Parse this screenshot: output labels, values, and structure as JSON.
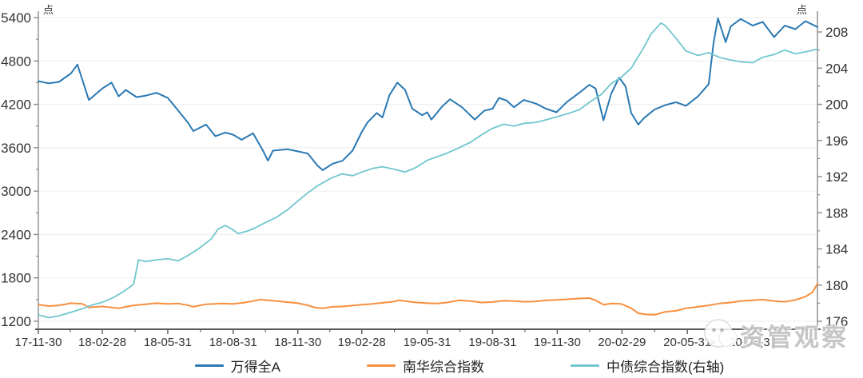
{
  "unit_left": "点",
  "unit_right": "点",
  "watermark": {
    "icon": "wechat-icon",
    "text": "资管观察"
  },
  "chart_data": {
    "type": "line",
    "title": "",
    "grid": "horizontal",
    "legend_position": "bottom",
    "x_tick_labels": [
      "17-11-30",
      "18-02-28",
      "18-05-31",
      "18-08-31",
      "18-11-30",
      "19-02-28",
      "19-05-31",
      "19-08-31",
      "19-11-30",
      "20-02-29",
      "20-05-31",
      "20-08-31"
    ],
    "x_range": [
      "17-11-30",
      "20-11-30"
    ],
    "left_axis": {
      "unit": "点",
      "min": 1200,
      "max": 5400,
      "ticks": [
        1200,
        1800,
        2400,
        3000,
        3600,
        4200,
        4800,
        5400
      ]
    },
    "right_axis": {
      "unit": "点",
      "min": 176,
      "max": 208,
      "ticks": [
        176,
        180,
        184,
        188,
        192,
        196,
        200,
        204,
        208
      ]
    },
    "colors": {
      "grid": "#ececec",
      "spine": "#8c8c8c",
      "bottom_spine": "#595959",
      "tick_text": "#333333"
    },
    "series": [
      {
        "name": "万得全A",
        "axis": "left",
        "color": "#2B79B3",
        "points": [
          [
            "17-11-30",
            4520
          ],
          [
            "17-12-15",
            4490
          ],
          [
            "17-12-29",
            4510
          ],
          [
            "18-01-15",
            4630
          ],
          [
            "18-01-24",
            4750
          ],
          [
            "18-02-09",
            4260
          ],
          [
            "18-02-28",
            4420
          ],
          [
            "18-03-13",
            4500
          ],
          [
            "18-03-23",
            4310
          ],
          [
            "18-04-02",
            4400
          ],
          [
            "18-04-17",
            4300
          ],
          [
            "18-04-30",
            4320
          ],
          [
            "18-05-15",
            4360
          ],
          [
            "18-05-31",
            4290
          ],
          [
            "18-06-15",
            4110
          ],
          [
            "18-06-29",
            3940
          ],
          [
            "18-07-06",
            3830
          ],
          [
            "18-07-24",
            3920
          ],
          [
            "18-08-06",
            3760
          ],
          [
            "18-08-20",
            3810
          ],
          [
            "18-08-31",
            3780
          ],
          [
            "18-09-12",
            3710
          ],
          [
            "18-09-28",
            3800
          ],
          [
            "18-10-12",
            3560
          ],
          [
            "18-10-19",
            3420
          ],
          [
            "18-10-26",
            3560
          ],
          [
            "18-11-15",
            3580
          ],
          [
            "18-11-30",
            3550
          ],
          [
            "18-12-14",
            3520
          ],
          [
            "18-12-28",
            3350
          ],
          [
            "19-01-04",
            3290
          ],
          [
            "19-01-18",
            3380
          ],
          [
            "19-02-01",
            3420
          ],
          [
            "19-02-15",
            3560
          ],
          [
            "19-02-28",
            3820
          ],
          [
            "19-03-08",
            3950
          ],
          [
            "19-03-21",
            4080
          ],
          [
            "19-03-29",
            4020
          ],
          [
            "19-04-08",
            4330
          ],
          [
            "19-04-19",
            4500
          ],
          [
            "19-04-30",
            4400
          ],
          [
            "19-05-10",
            4140
          ],
          [
            "19-05-24",
            4050
          ],
          [
            "19-05-31",
            4090
          ],
          [
            "19-06-06",
            3990
          ],
          [
            "19-06-21",
            4170
          ],
          [
            "19-07-02",
            4270
          ],
          [
            "19-07-19",
            4160
          ],
          [
            "19-08-06",
            3990
          ],
          [
            "19-08-19",
            4110
          ],
          [
            "19-08-31",
            4140
          ],
          [
            "19-09-09",
            4290
          ],
          [
            "19-09-20",
            4250
          ],
          [
            "19-09-30",
            4160
          ],
          [
            "19-10-14",
            4260
          ],
          [
            "19-10-31",
            4210
          ],
          [
            "19-11-14",
            4140
          ],
          [
            "19-11-29",
            4090
          ],
          [
            "19-12-13",
            4230
          ],
          [
            "19-12-31",
            4360
          ],
          [
            "20-01-14",
            4470
          ],
          [
            "20-01-23",
            4420
          ],
          [
            "20-02-03",
            3980
          ],
          [
            "20-02-14",
            4350
          ],
          [
            "20-02-25",
            4570
          ],
          [
            "20-03-05",
            4450
          ],
          [
            "20-03-13",
            4080
          ],
          [
            "20-03-23",
            3920
          ],
          [
            "20-03-31",
            4010
          ],
          [
            "20-04-15",
            4130
          ],
          [
            "20-04-30",
            4190
          ],
          [
            "20-05-15",
            4230
          ],
          [
            "20-05-29",
            4180
          ],
          [
            "20-06-15",
            4310
          ],
          [
            "20-06-30",
            4480
          ],
          [
            "20-07-07",
            5060
          ],
          [
            "20-07-13",
            5390
          ],
          [
            "20-07-24",
            5060
          ],
          [
            "20-07-31",
            5280
          ],
          [
            "20-08-14",
            5380
          ],
          [
            "20-08-31",
            5290
          ],
          [
            "20-09-14",
            5340
          ],
          [
            "20-09-30",
            5130
          ],
          [
            "20-10-15",
            5290
          ],
          [
            "20-10-30",
            5240
          ],
          [
            "20-11-13",
            5350
          ],
          [
            "20-11-30",
            5270
          ]
        ]
      },
      {
        "name": "南华综合指数",
        "axis": "left",
        "color": "#F78F3F",
        "points": [
          [
            "17-11-30",
            1430
          ],
          [
            "17-12-15",
            1410
          ],
          [
            "17-12-29",
            1420
          ],
          [
            "18-01-15",
            1450
          ],
          [
            "18-01-31",
            1440
          ],
          [
            "18-02-09",
            1390
          ],
          [
            "18-02-28",
            1405
          ],
          [
            "18-03-23",
            1380
          ],
          [
            "18-04-13",
            1420
          ],
          [
            "18-04-30",
            1435
          ],
          [
            "18-05-15",
            1450
          ],
          [
            "18-05-31",
            1440
          ],
          [
            "18-06-15",
            1445
          ],
          [
            "18-06-29",
            1420
          ],
          [
            "18-07-06",
            1400
          ],
          [
            "18-07-24",
            1435
          ],
          [
            "18-08-15",
            1445
          ],
          [
            "18-08-31",
            1440
          ],
          [
            "18-09-14",
            1455
          ],
          [
            "18-09-28",
            1480
          ],
          [
            "18-10-08",
            1500
          ],
          [
            "18-10-31",
            1480
          ],
          [
            "18-11-15",
            1465
          ],
          [
            "18-11-30",
            1450
          ],
          [
            "18-12-14",
            1420
          ],
          [
            "18-12-24",
            1390
          ],
          [
            "19-01-04",
            1380
          ],
          [
            "19-01-18",
            1400
          ],
          [
            "19-02-01",
            1405
          ],
          [
            "19-02-28",
            1430
          ],
          [
            "19-03-15",
            1440
          ],
          [
            "19-03-29",
            1455
          ],
          [
            "19-04-12",
            1470
          ],
          [
            "19-04-22",
            1490
          ],
          [
            "19-05-10",
            1465
          ],
          [
            "19-05-31",
            1450
          ],
          [
            "19-06-14",
            1445
          ],
          [
            "19-06-28",
            1460
          ],
          [
            "19-07-15",
            1490
          ],
          [
            "19-07-31",
            1480
          ],
          [
            "19-08-15",
            1460
          ],
          [
            "19-08-30",
            1465
          ],
          [
            "19-09-16",
            1485
          ],
          [
            "19-09-30",
            1480
          ],
          [
            "19-10-15",
            1470
          ],
          [
            "19-10-31",
            1475
          ],
          [
            "19-11-15",
            1490
          ],
          [
            "19-11-29",
            1495
          ],
          [
            "19-12-16",
            1505
          ],
          [
            "19-12-31",
            1515
          ],
          [
            "20-01-14",
            1520
          ],
          [
            "20-01-23",
            1490
          ],
          [
            "20-02-03",
            1430
          ],
          [
            "20-02-14",
            1445
          ],
          [
            "20-02-28",
            1440
          ],
          [
            "20-03-13",
            1380
          ],
          [
            "20-03-23",
            1310
          ],
          [
            "20-04-03",
            1295
          ],
          [
            "20-04-15",
            1290
          ],
          [
            "20-04-30",
            1330
          ],
          [
            "20-05-15",
            1345
          ],
          [
            "20-05-29",
            1380
          ],
          [
            "20-06-15",
            1400
          ],
          [
            "20-06-30",
            1420
          ],
          [
            "20-07-15",
            1445
          ],
          [
            "20-07-31",
            1460
          ],
          [
            "20-08-14",
            1480
          ],
          [
            "20-08-31",
            1490
          ],
          [
            "20-09-14",
            1500
          ],
          [
            "20-09-30",
            1480
          ],
          [
            "20-10-15",
            1470
          ],
          [
            "20-10-30",
            1495
          ],
          [
            "20-11-13",
            1540
          ],
          [
            "20-11-23",
            1600
          ],
          [
            "20-11-30",
            1720
          ]
        ]
      },
      {
        "name": "中债综合指数(右轴)",
        "axis": "right",
        "color": "#70C6CD",
        "points": [
          [
            "17-11-30",
            176.7
          ],
          [
            "17-12-15",
            176.4
          ],
          [
            "17-12-29",
            176.6
          ],
          [
            "18-01-15",
            177.0
          ],
          [
            "18-01-31",
            177.4
          ],
          [
            "18-02-14",
            177.8
          ],
          [
            "18-02-28",
            178.1
          ],
          [
            "18-03-15",
            178.6
          ],
          [
            "18-03-30",
            179.3
          ],
          [
            "18-04-13",
            180.1
          ],
          [
            "18-04-20",
            182.8
          ],
          [
            "18-04-30",
            182.6
          ],
          [
            "18-05-15",
            182.8
          ],
          [
            "18-05-31",
            182.9
          ],
          [
            "18-06-15",
            182.7
          ],
          [
            "18-06-29",
            183.3
          ],
          [
            "18-07-13",
            184.0
          ],
          [
            "18-07-31",
            185.1
          ],
          [
            "18-08-10",
            186.2
          ],
          [
            "18-08-20",
            186.6
          ],
          [
            "18-08-31",
            186.1
          ],
          [
            "18-09-07",
            185.7
          ],
          [
            "18-09-21",
            186.0
          ],
          [
            "18-09-30",
            186.3
          ],
          [
            "18-10-15",
            186.9
          ],
          [
            "18-10-31",
            187.5
          ],
          [
            "18-11-15",
            188.3
          ],
          [
            "18-11-30",
            189.3
          ],
          [
            "18-12-14",
            190.2
          ],
          [
            "18-12-28",
            191.0
          ],
          [
            "19-01-15",
            191.8
          ],
          [
            "19-01-31",
            192.3
          ],
          [
            "19-02-15",
            192.1
          ],
          [
            "19-02-28",
            192.5
          ],
          [
            "19-03-15",
            192.9
          ],
          [
            "19-03-29",
            193.1
          ],
          [
            "19-04-15",
            192.8
          ],
          [
            "19-04-30",
            192.5
          ],
          [
            "19-05-15",
            193.0
          ],
          [
            "19-05-31",
            193.8
          ],
          [
            "19-06-14",
            194.2
          ],
          [
            "19-06-28",
            194.6
          ],
          [
            "19-07-15",
            195.2
          ],
          [
            "19-07-31",
            195.8
          ],
          [
            "19-08-15",
            196.6
          ],
          [
            "19-08-30",
            197.3
          ],
          [
            "19-09-16",
            197.8
          ],
          [
            "19-09-30",
            197.6
          ],
          [
            "19-10-15",
            197.9
          ],
          [
            "19-10-31",
            198.0
          ],
          [
            "19-11-15",
            198.3
          ],
          [
            "19-11-29",
            198.6
          ],
          [
            "19-12-16",
            199.0
          ],
          [
            "19-12-31",
            199.4
          ],
          [
            "20-01-14",
            200.2
          ],
          [
            "20-01-31",
            201.1
          ],
          [
            "20-02-14",
            202.3
          ],
          [
            "20-02-28",
            203.0
          ],
          [
            "20-03-13",
            204.0
          ],
          [
            "20-03-31",
            206.3
          ],
          [
            "20-04-10",
            207.8
          ],
          [
            "20-04-24",
            209.0
          ],
          [
            "20-04-30",
            208.7
          ],
          [
            "20-05-15",
            207.3
          ],
          [
            "20-05-29",
            205.9
          ],
          [
            "20-06-15",
            205.4
          ],
          [
            "20-06-30",
            205.7
          ],
          [
            "20-07-15",
            205.2
          ],
          [
            "20-07-31",
            204.9
          ],
          [
            "20-08-14",
            204.7
          ],
          [
            "20-08-31",
            204.6
          ],
          [
            "20-09-14",
            205.2
          ],
          [
            "20-09-30",
            205.5
          ],
          [
            "20-10-15",
            206.0
          ],
          [
            "20-10-30",
            205.6
          ],
          [
            "20-11-13",
            205.8
          ],
          [
            "20-11-30",
            206.1
          ]
        ]
      }
    ]
  }
}
